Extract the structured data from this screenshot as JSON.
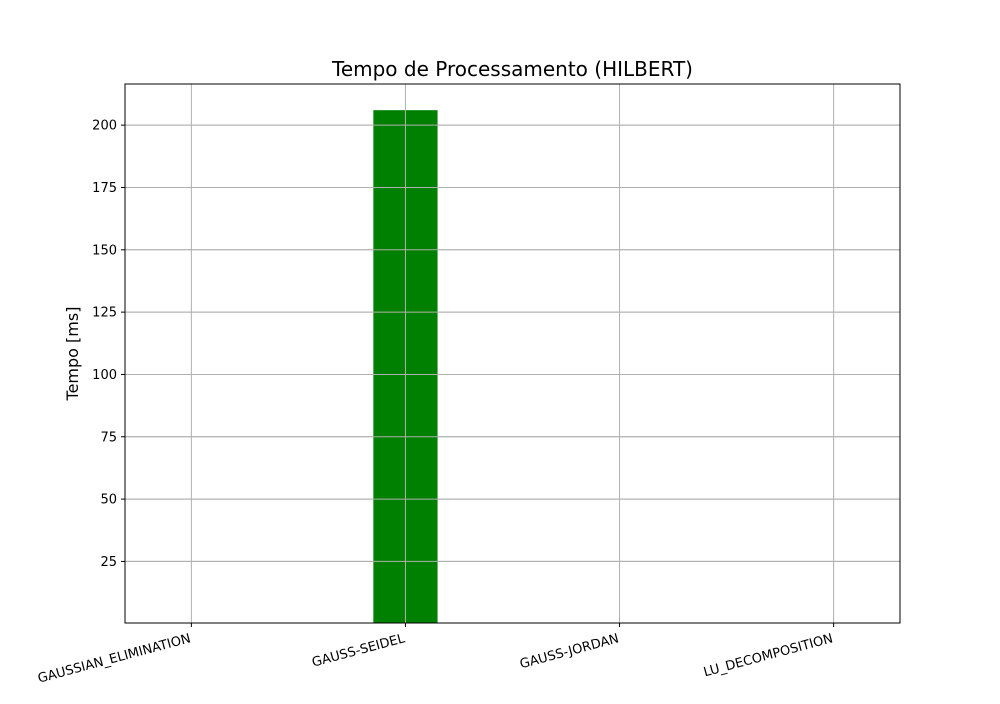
{
  "chart_data": {
    "type": "bar",
    "title": "Tempo de Processamento (HILBERT)",
    "xlabel": "",
    "ylabel": "Tempo [ms]",
    "categories": [
      "GAUSSIAN_ELIMINATION",
      "GAUSS-SEIDEL",
      "GAUSS-JORDAN",
      "LU_DECOMPOSITION"
    ],
    "values": [
      0,
      206,
      0,
      0
    ],
    "ylim": [
      0.3,
      216.5
    ],
    "yticks": [
      25,
      50,
      75,
      100,
      125,
      150,
      175,
      200
    ],
    "grid": true,
    "bar_color": "#008000",
    "x_tick_rotation": 15
  }
}
